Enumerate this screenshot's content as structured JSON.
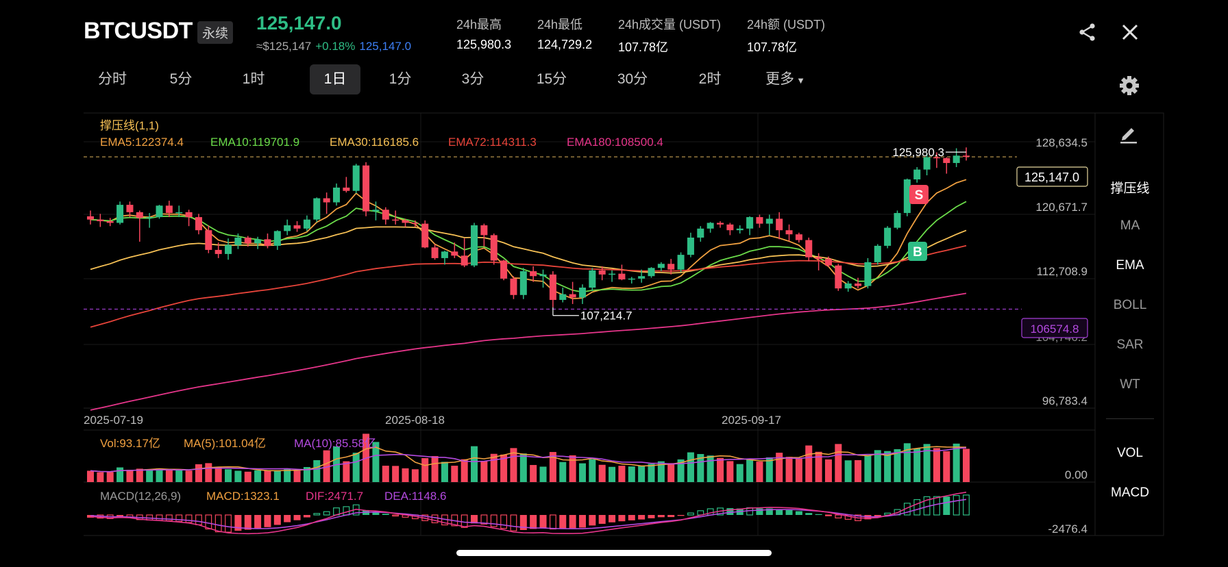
{
  "header": {
    "symbol": "BTCUSDT",
    "contract_type": "永续",
    "last_price": "125,147.0",
    "usd_equiv": "≈$125,147",
    "change_pct": "+0.18%",
    "mark_price": "125,147.0",
    "stats": [
      {
        "label": "24h最高",
        "value": "125,980.3"
      },
      {
        "label": "24h最低",
        "value": "124,729.2"
      },
      {
        "label": "24h成交量 (USDT)",
        "value": "107.78亿"
      },
      {
        "label": "24h额 (USDT)",
        "value": "107.78亿"
      }
    ],
    "icons": {
      "share": "share-icon",
      "close": "close-icon",
      "settings": "gear-icon"
    }
  },
  "timeframes": [
    "分时",
    "5分",
    "1时",
    "1日",
    "1分",
    "3分",
    "15分",
    "30分",
    "2时",
    "更多"
  ],
  "active_timeframe": "1日",
  "indicators_main": {
    "title": "撑压线(1,1)",
    "ema": [
      {
        "label": "EMA5:122374.4",
        "color": "#f0a040"
      },
      {
        "label": "EMA10:119701.9",
        "color": "#6bdc4a"
      },
      {
        "label": "EMA30:116185.6",
        "color": "#f7c155"
      },
      {
        "label": "EMA72:114311.3",
        "color": "#e8443a"
      },
      {
        "label": "EMA180:108500.4",
        "color": "#e6358a"
      }
    ]
  },
  "price_axis": [
    "128,634.5",
    "120,671.7",
    "112,708.9",
    "96,783.4"
  ],
  "price_axis_hidden": "104,746.2",
  "markers": {
    "high": "125,980.3",
    "low": "107,214.7",
    "current": "125,147.0",
    "line2": "106574.8",
    "sell": "S",
    "buy": "B"
  },
  "date_axis": [
    "2025-07-19",
    "2025-08-18",
    "2025-09-17"
  ],
  "volume": {
    "vol": "Vol:93.17亿",
    "ma5": "MA(5):101.04亿",
    "ma10": "MA(10):85.58亿",
    "axis": "0.00"
  },
  "macd": {
    "title": "MACD(12,26,9)",
    "macd": "MACD:1323.1",
    "dif": "DIF:2471.7",
    "dea": "DEA:1148.6",
    "axis": "-2476.4"
  },
  "side_menu": [
    "撑压线",
    "MA",
    "EMA",
    "BOLL",
    "SAR",
    "WT",
    "VOL",
    "MACD"
  ],
  "side_menu_active": [
    "撑压线",
    "EMA",
    "VOL",
    "MACD"
  ],
  "colors": {
    "up": "#2ebd85",
    "down": "#f6465d",
    "background": "#000000",
    "accent_blue": "#3d7ff5",
    "purple": "#b44ae0"
  },
  "chart_data": {
    "type": "candlestick",
    "x_start": "2025-07-19",
    "x_end": "2025-10-06",
    "ylim": [
      94500,
      130500
    ],
    "ohlc": [
      [
        117900,
        118600,
        116900,
        117500
      ],
      [
        117500,
        118200,
        116600,
        117300
      ],
      [
        117300,
        117700,
        116700,
        117100
      ],
      [
        117100,
        119700,
        116900,
        119300
      ],
      [
        119300,
        119700,
        117800,
        118400
      ],
      [
        118400,
        118600,
        114800,
        117700
      ],
      [
        117700,
        118300,
        116500,
        117800
      ],
      [
        117800,
        119300,
        117600,
        119200
      ],
      [
        119200,
        119800,
        117800,
        118300
      ],
      [
        118300,
        119200,
        117800,
        118400
      ],
      [
        118400,
        118700,
        116700,
        117800
      ],
      [
        117800,
        118200,
        115700,
        116200
      ],
      [
        116200,
        116800,
        113400,
        113800
      ],
      [
        113800,
        114700,
        112800,
        113300
      ],
      [
        113300,
        115200,
        112600,
        114400
      ],
      [
        114400,
        115800,
        113900,
        115300
      ],
      [
        115300,
        115500,
        114200,
        114600
      ],
      [
        114600,
        115400,
        113900,
        115100
      ],
      [
        115100,
        115800,
        114000,
        114300
      ],
      [
        114300,
        116200,
        113800,
        116100
      ],
      [
        116100,
        117500,
        115600,
        116800
      ],
      [
        116800,
        117300,
        116000,
        116400
      ],
      [
        116400,
        118000,
        116100,
        117500
      ],
      [
        117500,
        120200,
        117200,
        120100
      ],
      [
        120100,
        120800,
        118200,
        119600
      ],
      [
        119600,
        121900,
        119200,
        121400
      ],
      [
        121400,
        122700,
        120800,
        121000
      ],
      [
        121000,
        124300,
        120700,
        124100
      ],
      [
        124100,
        124500,
        117900,
        118500
      ],
      [
        118500,
        119700,
        117400,
        118700
      ],
      [
        118700,
        119000,
        116900,
        117500
      ],
      [
        117500,
        118600,
        116900,
        117400
      ],
      [
        117400,
        117600,
        116600,
        117100
      ],
      [
        117100,
        117400,
        116600,
        117000
      ],
      [
        117000,
        117400,
        114000,
        114100
      ],
      [
        114100,
        114500,
        112600,
        112800
      ],
      [
        112800,
        113700,
        112000,
        113600
      ],
      [
        113600,
        114700,
        112800,
        113100
      ],
      [
        113100,
        115200,
        111700,
        111900
      ],
      [
        111900,
        117100,
        111700,
        116800
      ],
      [
        116800,
        117000,
        114200,
        115600
      ],
      [
        115600,
        115800,
        112000,
        112500
      ],
      [
        112500,
        112600,
        110100,
        110300
      ],
      [
        110300,
        110600,
        107800,
        108300
      ],
      [
        108300,
        111600,
        107800,
        111200
      ],
      [
        111200,
        111800,
        109900,
        110600
      ],
      [
        110600,
        111400,
        109200,
        110800
      ],
      [
        110800,
        111200,
        106800,
        107700
      ],
      [
        107700,
        109200,
        107400,
        108400
      ],
      [
        108400,
        109900,
        107200,
        108000
      ],
      [
        108000,
        109600,
        107200,
        109200
      ],
      [
        109200,
        111600,
        108800,
        111300
      ],
      [
        111300,
        111800,
        110100,
        110800
      ],
      [
        110800,
        111300,
        109900,
        110900
      ],
      [
        110900,
        112000,
        110100,
        110200
      ],
      [
        110200,
        110500,
        109700,
        110300
      ],
      [
        110300,
        111400,
        109800,
        110600
      ],
      [
        110600,
        111700,
        110400,
        111600
      ],
      [
        111600,
        112300,
        111200,
        112100
      ],
      [
        112100,
        112700,
        110800,
        111400
      ],
      [
        111400,
        113500,
        111100,
        113200
      ],
      [
        113200,
        115900,
        112900,
        115300
      ],
      [
        115300,
        116700,
        114800,
        116400
      ],
      [
        116400,
        117200,
        115900,
        117100
      ],
      [
        117100,
        117300,
        116500,
        116900
      ],
      [
        116900,
        117100,
        115600,
        116200
      ],
      [
        116200,
        116800,
        115800,
        116400
      ],
      [
        116400,
        117900,
        115600,
        117800
      ],
      [
        117800,
        118100,
        116500,
        117000
      ],
      [
        117000,
        118100,
        115600,
        117600
      ],
      [
        117600,
        118400,
        115100,
        116200
      ],
      [
        116200,
        116900,
        114900,
        115700
      ],
      [
        115700,
        115900,
        114700,
        115000
      ],
      [
        115000,
        115300,
        112400,
        112900
      ],
      [
        112900,
        113400,
        111300,
        112700
      ],
      [
        112700,
        113000,
        111700,
        111900
      ],
      [
        111900,
        112100,
        108800,
        109100
      ],
      [
        109100,
        110000,
        108700,
        109700
      ],
      [
        109700,
        110400,
        109100,
        109400
      ],
      [
        109400,
        112800,
        109100,
        112300
      ],
      [
        112300,
        114500,
        112000,
        114300
      ],
      [
        114300,
        116700,
        114000,
        116500
      ],
      [
        116500,
        118600,
        116300,
        118300
      ],
      [
        118300,
        122500,
        117900,
        122400
      ],
      [
        122400,
        123900,
        122000,
        123600
      ],
      [
        123600,
        125600,
        122900,
        125100
      ],
      [
        125100,
        125700,
        123800,
        125000
      ],
      [
        125000,
        125100,
        123100,
        124400
      ],
      [
        124400,
        126200,
        123900,
        125300
      ],
      [
        125300,
        126300,
        124700,
        125147
      ]
    ],
    "ema_series_last": {
      "EMA5": 122374.4,
      "EMA10": 119701.9,
      "EMA30": 116185.6,
      "EMA72": 114311.3,
      "EMA180": 108500.4
    },
    "support_resistance": [
      125147.0,
      106574.8
    ],
    "volume_values": [
      6.1,
      5.3,
      5.4,
      7.9,
      6.6,
      7.2,
      6.8,
      7.4,
      6.5,
      6.3,
      6.2,
      9.6,
      10.2,
      8.1,
      6.9,
      6.1,
      5.6,
      6.3,
      6.1,
      6.4,
      6.9,
      6.2,
      8.1,
      11.8,
      17.1,
      19.2,
      11.2,
      15.8,
      26.0,
      21.6,
      8.8,
      8.7,
      7.4,
      6.9,
      12.9,
      14.0,
      10.9,
      8.8,
      12.3,
      19.3,
      11.3,
      15.2,
      14.8,
      18.3,
      15.4,
      9.2,
      8.3,
      16.2,
      10.8,
      14.4,
      10.1,
      12.3,
      9.3,
      8.2,
      8.8,
      8.4,
      8.8,
      9.8,
      11.2,
      10.2,
      12.2,
      16.0,
      15.1,
      14.3,
      13.0,
      11.3,
      9.7,
      12.2,
      11.0,
      13.3,
      15.8,
      13.6,
      12.6,
      19.7,
      16.3,
      12.2,
      20.5,
      11.7,
      11.8,
      14.5,
      17.2,
      16.7,
      17.7,
      20.9,
      18.1,
      20.5,
      18.3,
      16.6,
      20.7,
      17.9
    ],
    "macd_hist": [
      -180,
      -210,
      -240,
      -140,
      -160,
      -310,
      -340,
      -360,
      -380,
      -430,
      -500,
      -650,
      -930,
      -1120,
      -1140,
      -1050,
      -980,
      -890,
      -810,
      -660,
      -480,
      -350,
      -160,
      100,
      220,
      470,
      550,
      670,
      320,
      210,
      80,
      -70,
      -150,
      -250,
      -380,
      -520,
      -660,
      -720,
      -830,
      -560,
      -610,
      -770,
      -890,
      -1050,
      -1000,
      -930,
      -850,
      -930,
      -900,
      -880,
      -840,
      -700,
      -590,
      -490,
      -420,
      -360,
      -300,
      -220,
      -150,
      -140,
      -60,
      130,
      280,
      410,
      460,
      450,
      430,
      480,
      430,
      430,
      380,
      320,
      250,
      130,
      40,
      -40,
      -200,
      -290,
      -380,
      -290,
      -150,
      120,
      360,
      780,
      1020,
      1210,
      1220,
      1220,
      1290,
      1323.1
    ],
    "volume_axis": "0.00",
    "macd_axis": "-2476.4"
  }
}
